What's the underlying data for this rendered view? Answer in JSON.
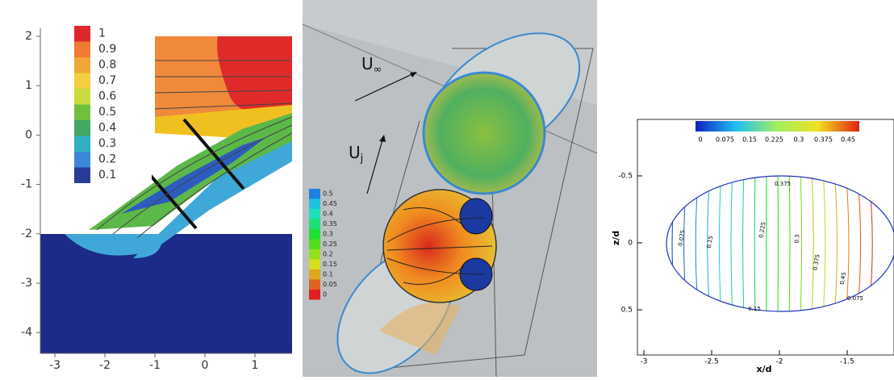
{
  "panels": [
    {
      "yticks": [
        "2",
        "1",
        "0",
        "-1",
        "-2",
        "-3",
        "-4"
      ],
      "xticks": [
        "-3",
        "-2",
        "-1",
        "0",
        "1"
      ],
      "colorbar": [
        "1",
        "0.9",
        "0.8",
        "0.7",
        "0.6",
        "0.5",
        "0.4",
        "0.3",
        "0.2",
        "0.1"
      ]
    },
    {
      "labels": {
        "freestream": "U",
        "freestream_sub": "∞",
        "jet": "U",
        "jet_sub": "j"
      },
      "colorbar": [
        "0.5",
        "0.45",
        "0.4",
        "0.35",
        "0.3",
        "0.25",
        "0.2",
        "0.15",
        "0.1",
        "0.05",
        "0"
      ]
    },
    {
      "yticks": [
        "-0.5",
        "0",
        "0.5"
      ],
      "xticks": [
        "-3",
        "-2.5",
        "-2",
        "-1.5"
      ],
      "xlabel": "x/d",
      "ylabel": "z/d",
      "colorbar": [
        "0",
        "0.075",
        "0.15",
        "0.225",
        "0.3",
        "0.375",
        "0.45"
      ],
      "contour_labels": [
        "0.075",
        "0.15",
        "0.225",
        "0.3",
        "0.375",
        "0.45",
        "0.15",
        "0.375",
        "0.075"
      ]
    }
  ]
}
